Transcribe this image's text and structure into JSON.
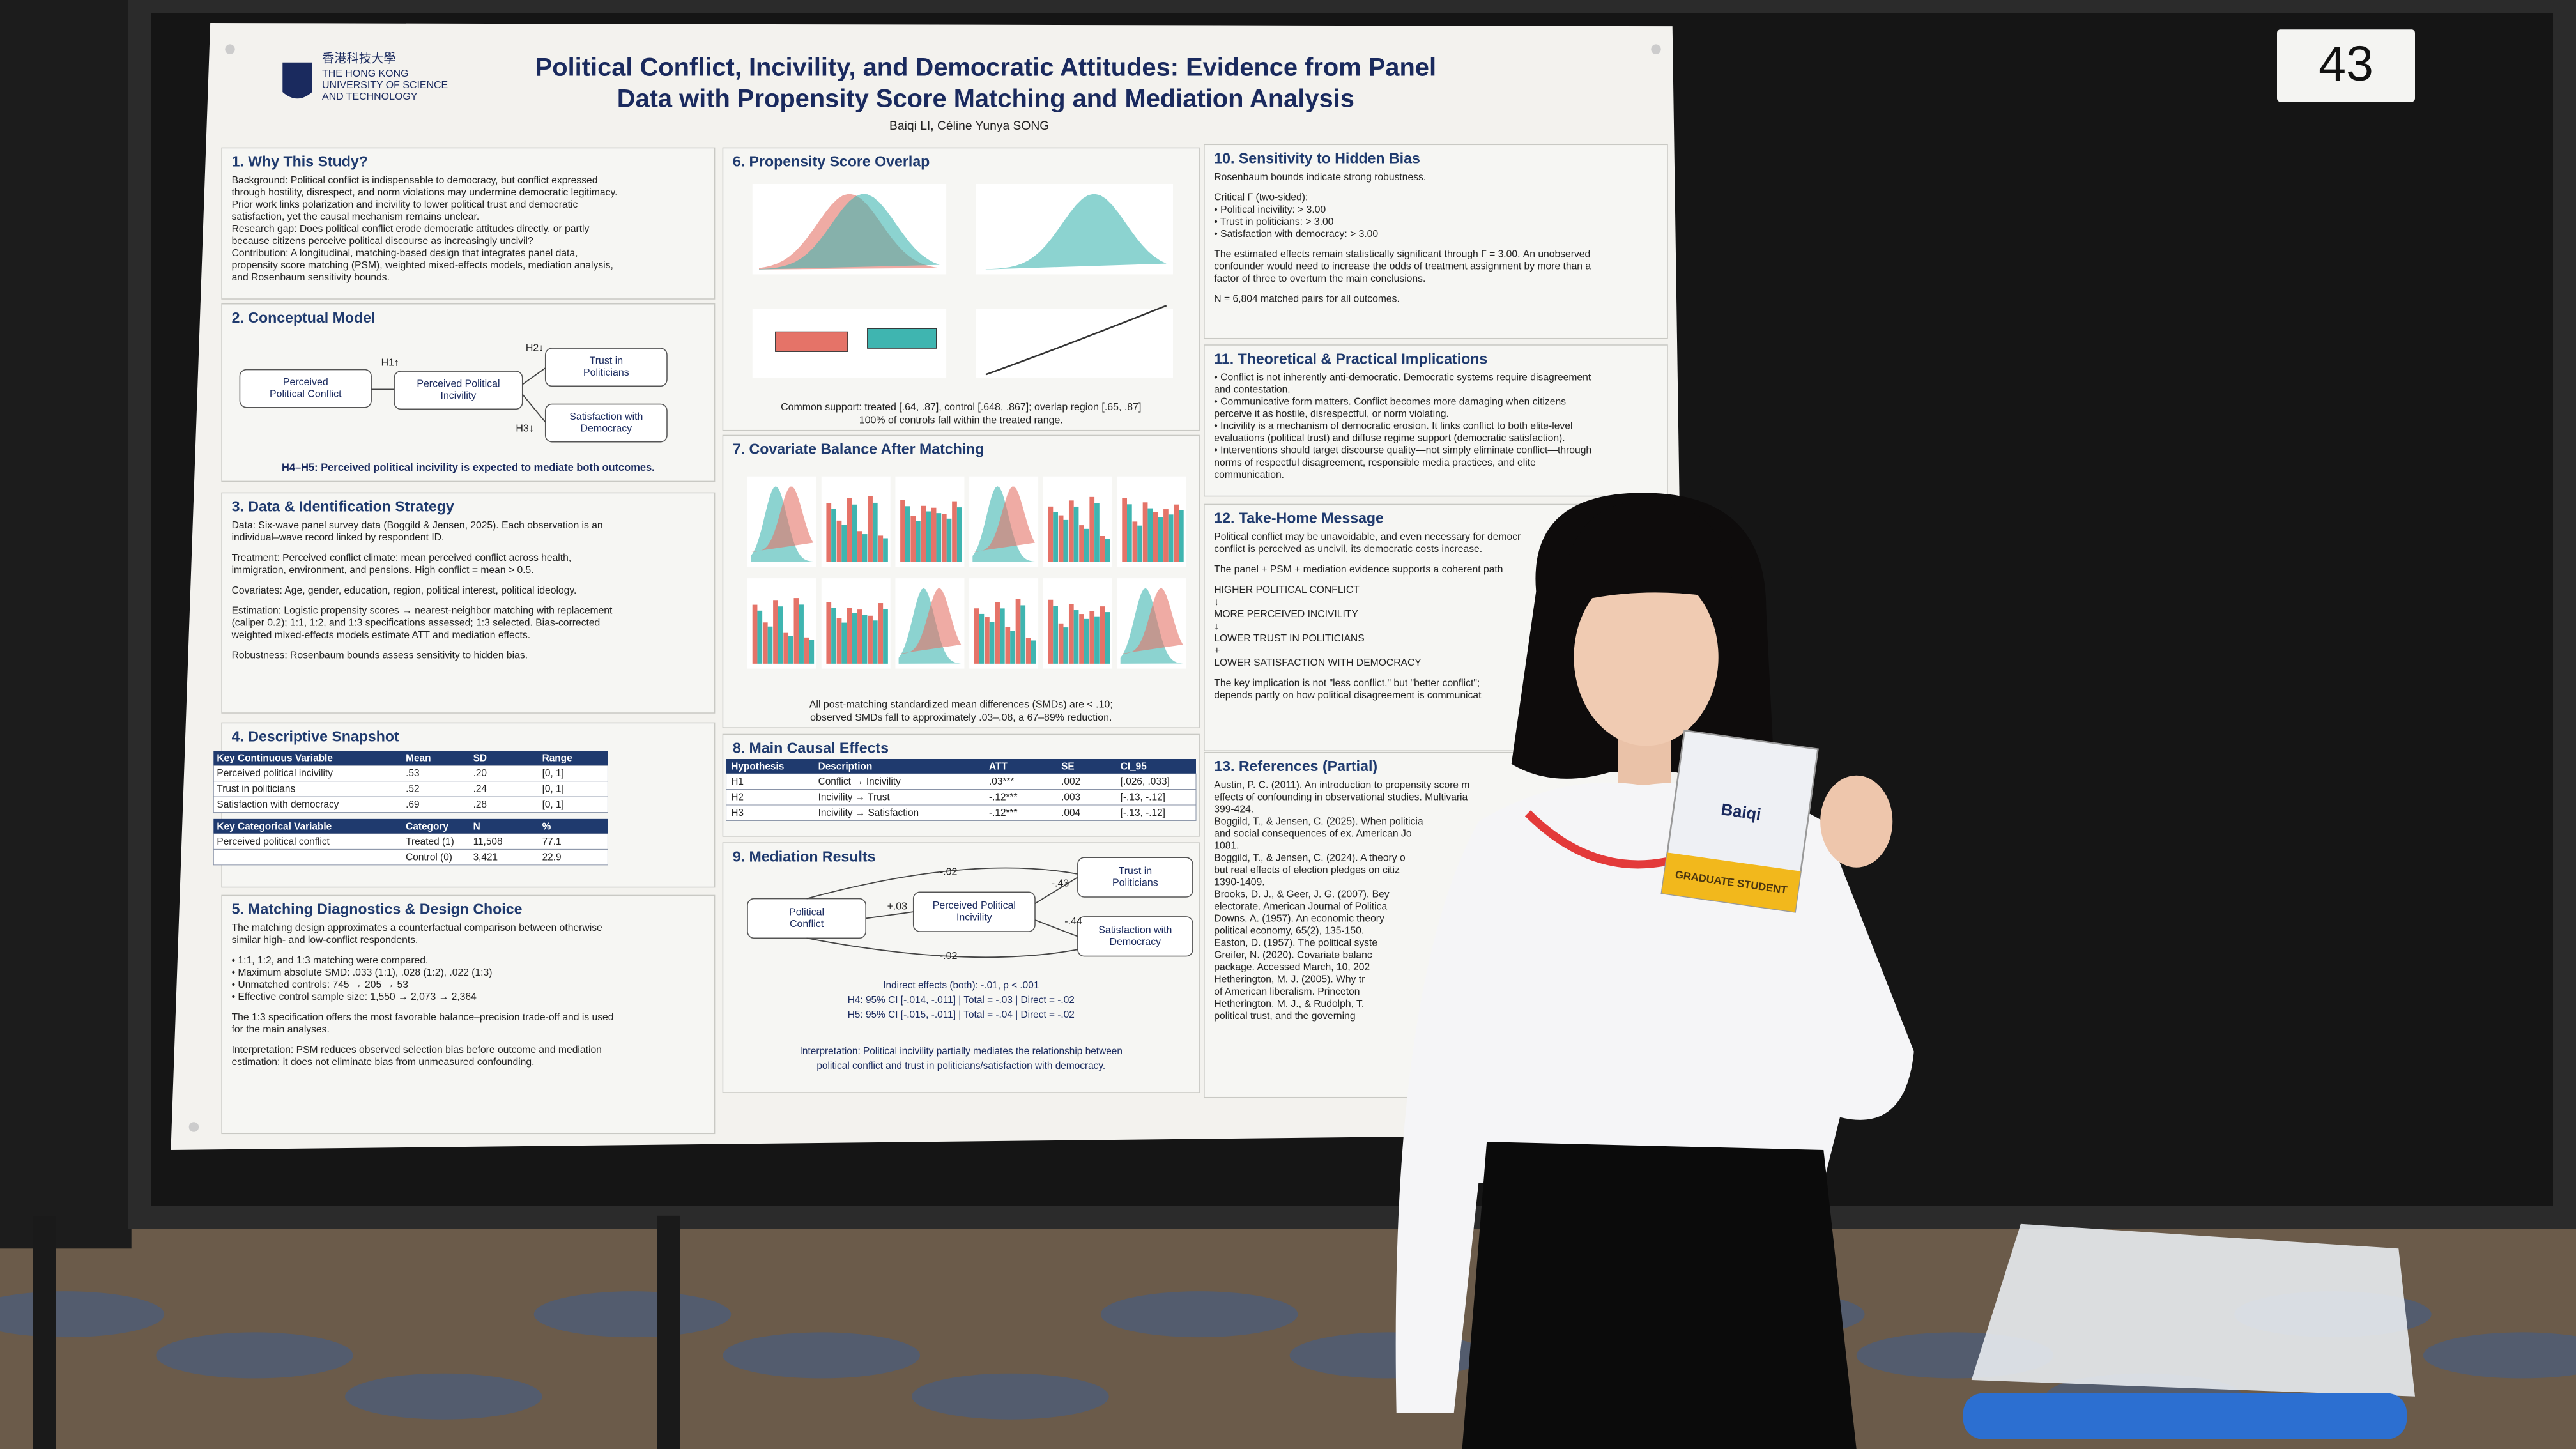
{
  "board_number": "43",
  "badge": {
    "name": "Baiqi",
    "role": "GRADUATE STUDENT"
  },
  "poster": {
    "institution": {
      "chinese": "香港科技大學",
      "lines": [
        "THE HONG KONG",
        "UNIVERSITY OF SCIENCE",
        "AND TECHNOLOGY"
      ]
    },
    "title": [
      "Political Conflict, Incivility, and Democratic Attitudes: Evidence from Panel",
      "Data with Propensity Score Matching and Mediation Analysis"
    ],
    "authors": "Baiqi LI, Céline Yunya SONG",
    "sections": [
      {
        "title": "1. Why This Study?",
        "paragraphs": [
          [
            "Background: Political conflict is indispensable to democracy, but conflict expressed",
            "through hostility, disrespect, and norm violations may undermine democratic legitimacy.",
            "Prior work links polarization and incivility to lower political trust and democratic",
            "satisfaction, yet the causal mechanism remains unclear.",
            "Research gap: Does political conflict erode democratic attitudes directly, or partly",
            "because citizens perceive political discourse as increasingly uncivil?",
            "Contribution: A longitudinal, matching-based design that integrates panel data,",
            "propensity score matching (PSM), weighted mixed-effects models, mediation analysis,",
            "and Rosenbaum sensitivity bounds."
          ]
        ]
      },
      {
        "title": "2. Conceptual Model",
        "diagram": {
          "nodes": [
            [
              "Perceived",
              "Political Conflict"
            ],
            [
              "Perceived Political",
              "Incivility"
            ],
            [
              "Trust in",
              "Politicians"
            ],
            [
              "Satisfaction with",
              "Democracy"
            ]
          ],
          "edge_labels": [
            "H1↑",
            "H2↓",
            "H3↓"
          ]
        },
        "footer": [
          "H4–H5: Perceived political incivility is expected to mediate both outcomes."
        ]
      },
      {
        "title": "3. Data & Identification Strategy",
        "paragraphs": [
          [
            "Data: Six-wave panel survey data (Boggild & Jensen, 2025). Each observation is an",
            "individual–wave record linked by respondent ID."
          ],
          [
            "Treatment: Perceived conflict climate: mean perceived conflict across health,",
            "immigration, environment, and pensions. High conflict = mean > 0.5."
          ],
          [
            "Covariates: Age, gender, education, region, political interest, political ideology."
          ],
          [
            "Estimation: Logistic propensity scores → nearest-neighbor matching with replacement",
            "(caliper 0.2); 1:1, 1:2, and 1:3 specifications assessed; 1:3 selected. Bias-corrected",
            "weighted mixed-effects models estimate ATT and mediation effects."
          ],
          [
            "Robustness: Rosenbaum bounds assess sensitivity to hidden bias."
          ]
        ]
      },
      {
        "title": "4. Descriptive Snapshot",
        "tables": [
          {
            "header": [
              "Key Continuous Variable",
              "Mean",
              "SD",
              "Range"
            ],
            "rows": [
              [
                "Perceived political incivility",
                ".53",
                ".20",
                "[0, 1]"
              ],
              [
                "Trust in politicians",
                ".52",
                ".24",
                "[0, 1]"
              ],
              [
                "Satisfaction with democracy",
                ".69",
                ".28",
                "[0, 1]"
              ]
            ]
          },
          {
            "header": [
              "Key Categorical Variable",
              "Category",
              "N",
              "%"
            ],
            "rows": [
              [
                "Perceived political conflict",
                "Treated (1)",
                "11,508",
                "77.1"
              ],
              [
                null,
                "Control (0)",
                "3,421",
                "22.9"
              ]
            ]
          }
        ]
      },
      {
        "title": "5. Matching Diagnostics & Design Choice",
        "paragraphs": [
          [
            "The matching design approximates a counterfactual comparison between otherwise",
            "similar high- and low-conflict respondents."
          ],
          [
            "• 1:1, 1:2, and 1:3 matching were compared.",
            "• Maximum absolute SMD: .033 (1:1), .028 (1:2), .022 (1:3)",
            "• Unmatched controls: 745 → 205 → 53",
            "• Effective control sample size: 1,550 → 2,073 → 2,364"
          ],
          [
            "The 1:3 specification offers the most favorable balance–precision trade-off and is used",
            "for the main analyses."
          ],
          [
            "Interpretation: PSM reduces observed selection bias before outcome and mediation",
            "estimation; it does not eliminate bias from unmeasured confounding."
          ]
        ]
      },
      {
        "title": "6. Propensity Score Overlap",
        "caption": [
          "Common support: treated [.64, .87], control [.648, .867]; overlap region [.65, .87]",
          "100% of controls fall within the treated range."
        ]
      },
      {
        "title": "7. Covariate Balance After Matching",
        "caption": [
          "All post-matching standardized mean differences (SMDs) are < .10;",
          "observed SMDs fall to approximately .03–.08, a 67–89% reduction."
        ]
      },
      {
        "title": "8. Main Causal Effects",
        "tables": [
          {
            "header": [
              "Hypothesis",
              "Description",
              "ATT",
              "SE",
              "CI_95"
            ],
            "rows": [
              [
                "H1",
                "Conflict → Incivility",
                ".03***",
                ".002",
                "[.026, .033]"
              ],
              [
                "H2",
                "Incivility → Trust",
                "-.12***",
                ".003",
                "[-.13, -.12]"
              ],
              [
                "H3",
                "Incivility → Satisfaction",
                "-.12***",
                ".004",
                "[-.13, -.12]"
              ]
            ]
          }
        ]
      },
      {
        "title": "9. Mediation Results",
        "diagram": {
          "nodes": [
            [
              "Political",
              "Conflict"
            ],
            [
              "Perceived Political",
              "Incivility"
            ],
            [
              "Trust in",
              "Politicians"
            ],
            [
              "Satisfaction with",
              "Democracy"
            ]
          ],
          "edge_labels": [
            "+.03",
            "-.43",
            "-.44",
            "-.02",
            "-.02"
          ]
        },
        "footer": [
          "Indirect effects (both): -.01, p < .001",
          "H4: 95% CI [-.014, -.011]  |  Total = -.03  |  Direct = -.02",
          "H5: 95% CI [-.015, -.011]  |  Total = -.04  |  Direct = -.02",
          "Interpretation: Political incivility partially mediates the relationship between",
          "political conflict and trust in politicians/satisfaction with democracy."
        ]
      },
      {
        "title": "10. Sensitivity to Hidden Bias",
        "paragraphs": [
          [
            "Rosenbaum bounds indicate strong robustness."
          ],
          [
            "Critical Γ (two-sided):",
            "• Political incivility: > 3.00",
            "• Trust in politicians: > 3.00",
            "• Satisfaction with democracy: > 3.00"
          ],
          [
            "The estimated effects remain statistically significant through Γ = 3.00. An unobserved",
            "confounder would need to increase the odds of treatment assignment by more than a",
            "factor of three to overturn the main conclusions."
          ],
          [
            "N = 6,804 matched pairs for all outcomes."
          ]
        ]
      },
      {
        "title": "11. Theoretical & Practical Implications",
        "paragraphs": [
          [
            "• Conflict is not inherently anti-democratic. Democratic systems require disagreement",
            "  and contestation.",
            "• Communicative form matters. Conflict becomes more damaging when citizens",
            "  perceive it as hostile, disrespectful, or norm violating.",
            "• Incivility is a mechanism of democratic erosion. It links conflict to both elite-level",
            "  evaluations (political trust) and diffuse regime support (democratic satisfaction).",
            "• Interventions should target discourse quality—not simply eliminate conflict—through",
            "  norms of respectful disagreement, responsible media practices, and elite",
            "  communication."
          ]
        ]
      },
      {
        "title": "12. Take-Home Message",
        "paragraphs": [
          [
            "Political conflict may be unavoidable, and even necessary for democr",
            "conflict is perceived as uncivil, its democratic costs increase."
          ],
          [
            "The panel + PSM + mediation evidence supports a coherent path"
          ],
          [
            "HIGHER POLITICAL CONFLICT",
            "↓",
            "MORE PERCEIVED INCIVILITY",
            "↓",
            "LOWER TRUST IN POLITICIANS",
            "+",
            "LOWER SATISFACTION WITH DEMOCRACY"
          ],
          [
            "The key implication is not \"less conflict,\" but \"better conflict\";",
            "depends partly on how political disagreement is communicat"
          ]
        ]
      },
      {
        "title": "13. References (Partial)",
        "paragraphs": [
          [
            "Austin, P. C. (2011). An introduction to propensity score m",
            "effects of confounding in observational studies. Multivaria",
            "399-424.",
            "Boggild, T., & Jensen, C. (2025). When politicia",
            "and social consequences of ex. American Jo",
            "1081.",
            "Boggild, T., & Jensen, C. (2024). A theory o",
            "but real effects of election pledges on citiz",
            "1390-1409.",
            "Brooks, D. J., & Geer, J. G. (2007). Bey",
            "electorate. American Journal of Politica",
            "Downs, A. (1957). An economic theory",
            "political economy, 65(2), 135-150.",
            "Easton, D. (1957). The political syste",
            "Greifer, N. (2020). Covariate balanc",
            "package. Accessed March, 10, 202",
            "Hetherington, M. J. (2005). Why tr",
            "of American liberalism. Princeton",
            "Hetherington, M. J., & Rudolph, T.",
            "political trust, and the governing"
          ]
        ]
      }
    ]
  }
}
